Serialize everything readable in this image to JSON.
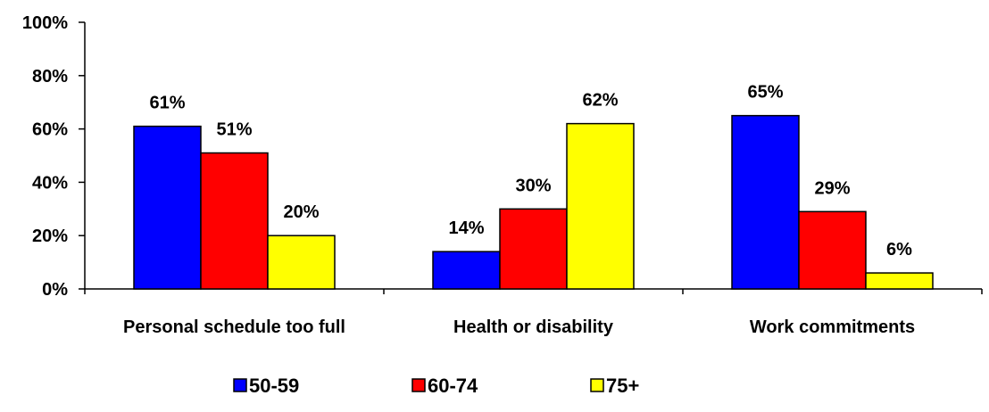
{
  "chart_data": {
    "type": "bar",
    "categories": [
      "Personal schedule too full",
      "Health or disability",
      "Work commitments"
    ],
    "series": [
      {
        "name": "50-59",
        "values": [
          61,
          14,
          65
        ],
        "color": "#0000ff"
      },
      {
        "name": "60-74",
        "values": [
          51,
          30,
          29
        ],
        "color": "#ff0000"
      },
      {
        "name": "75+",
        "values": [
          20,
          62,
          6
        ],
        "color": "#ffff00"
      }
    ],
    "data_labels": [
      [
        "61%",
        "14%",
        "65%"
      ],
      [
        "51%",
        "30%",
        "29%"
      ],
      [
        "20%",
        "62%",
        "6%"
      ]
    ],
    "y_ticks": [
      "0%",
      "20%",
      "40%",
      "60%",
      "80%",
      "100%"
    ],
    "ylim": [
      0,
      100
    ],
    "title": "",
    "xlabel": "",
    "ylabel": "",
    "legend_position": "bottom",
    "grid": false
  }
}
